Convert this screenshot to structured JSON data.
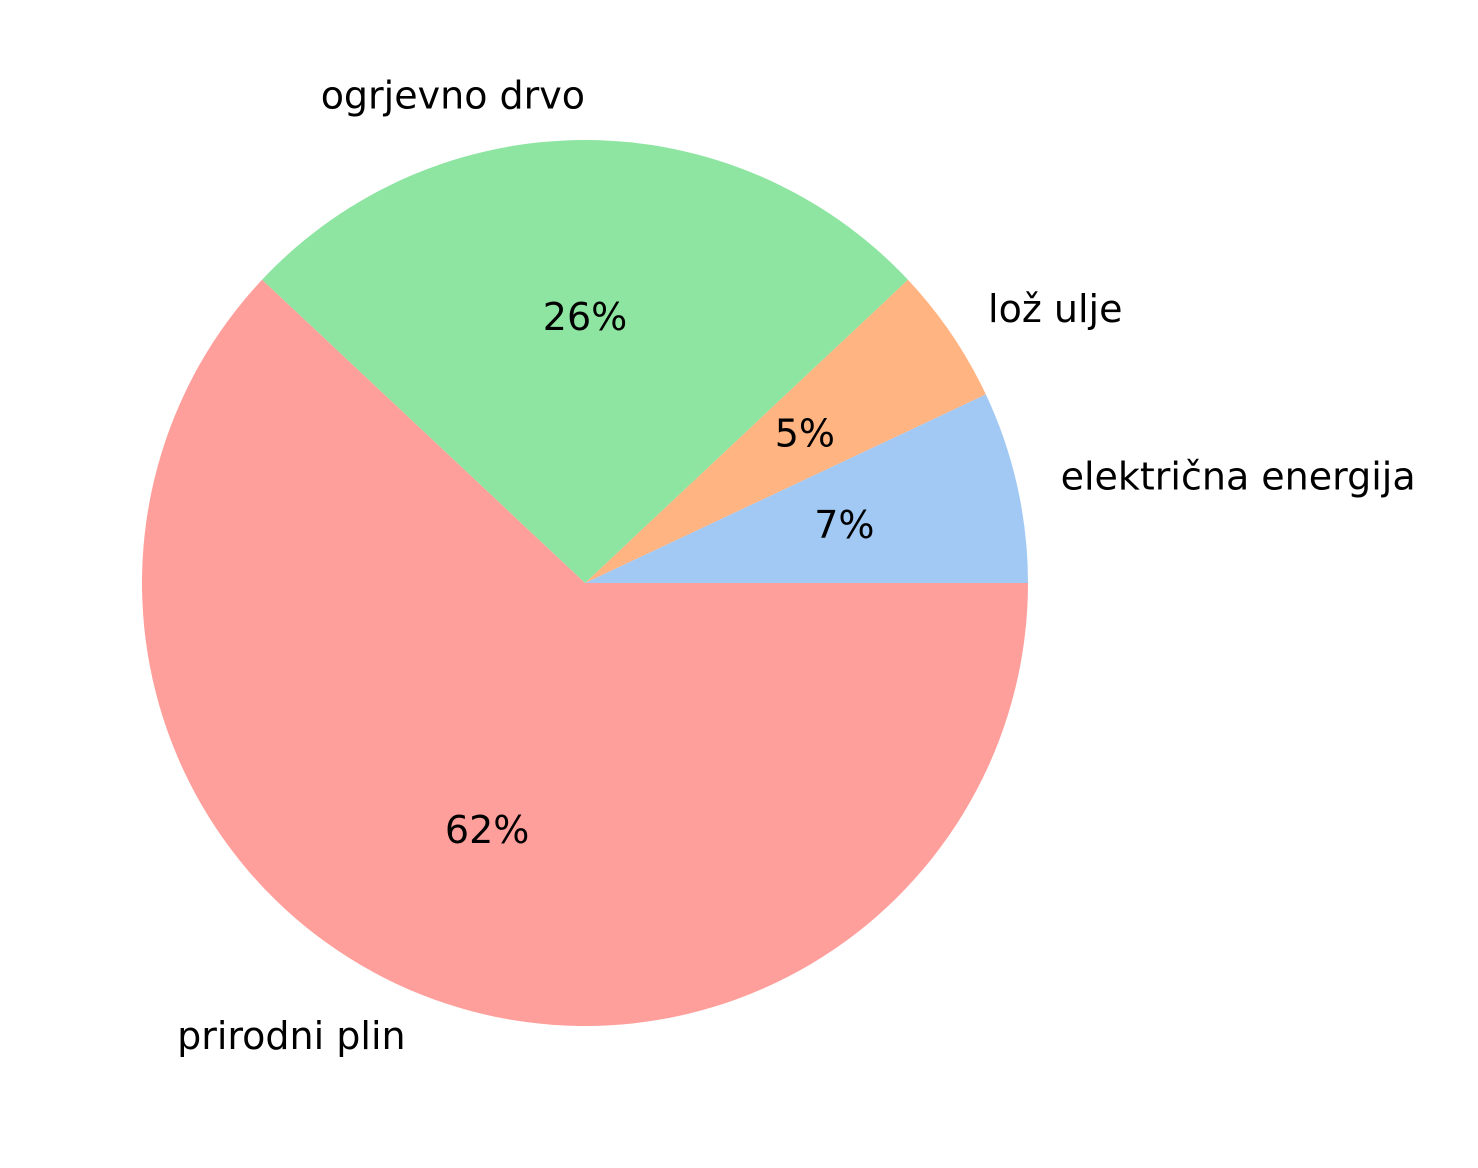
{
  "chart_data": {
    "type": "pie",
    "title": "",
    "slices": [
      {
        "label": "električna energija",
        "value": 7,
        "pct_label": "7%",
        "color": "#a1c9f4"
      },
      {
        "label": "lož ulje",
        "value": 5,
        "pct_label": "5%",
        "color": "#ffb482"
      },
      {
        "label": "ogrjevno drvo",
        "value": 26,
        "pct_label": "26%",
        "color": "#8de5a1"
      },
      {
        "label": "prirodni plin",
        "value": 62,
        "pct_label": "62%",
        "color": "#ff9f9b"
      }
    ],
    "start_angle_deg": 0,
    "direction": "counterclockwise",
    "legend": "none"
  }
}
